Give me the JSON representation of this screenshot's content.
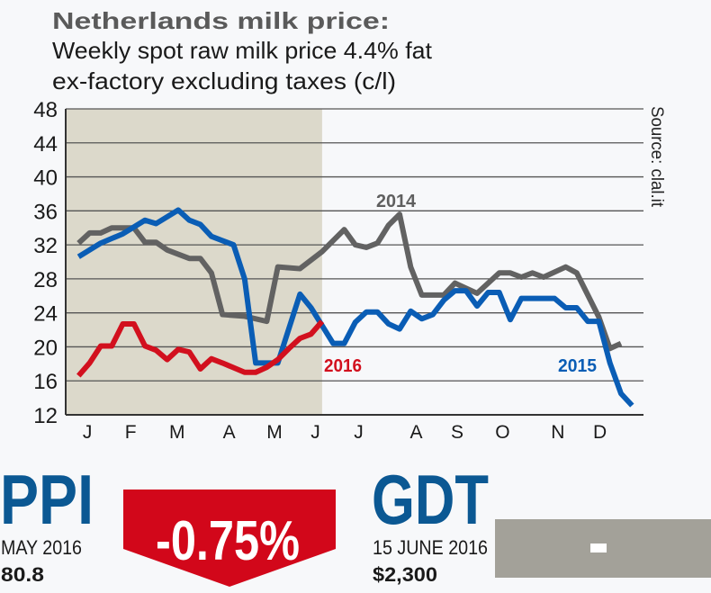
{
  "chart_data": {
    "type": "line",
    "title": "Netherlands milk price:",
    "subtitle": [
      "Weekly spot raw milk price 4.4% fat",
      "ex-factory excluding taxes (c/l)"
    ],
    "source": "Source: clal.it",
    "xlabel": "",
    "ylabel": "",
    "ylim": [
      12,
      48
    ],
    "yticks": [
      48,
      44,
      40,
      36,
      32,
      28,
      24,
      20,
      16,
      12
    ],
    "x_unit": "week",
    "xlim": [
      0,
      52
    ],
    "month_labels": [
      "J",
      "F",
      "M",
      "A",
      "M",
      "J",
      "J",
      "A",
      "S",
      "O",
      "N",
      "D"
    ],
    "month_label_weeks": [
      1.8,
      5.7,
      9.9,
      14.6,
      18.7,
      22.4,
      26.3,
      31.5,
      35.2,
      39.3,
      44.3,
      48.1
    ],
    "shaded_region_weeks": [
      0,
      23
    ],
    "grid": true,
    "series": [
      {
        "name": "2014",
        "color": "#626262",
        "points": [
          [
            1,
            32.2
          ],
          [
            2,
            33.4
          ],
          [
            3,
            33.4
          ],
          [
            4,
            34
          ],
          [
            6,
            34
          ],
          [
            7,
            32.3
          ],
          [
            8,
            32.3
          ],
          [
            9,
            31.4
          ],
          [
            11,
            30.4
          ],
          [
            12,
            30.4
          ],
          [
            13,
            28.7
          ],
          [
            14,
            23.8
          ],
          [
            16,
            23.6
          ],
          [
            18,
            23.0
          ],
          [
            19,
            29.4
          ],
          [
            21,
            29.2
          ],
          [
            23,
            31.2
          ],
          [
            25,
            33.8
          ],
          [
            26,
            32.0
          ],
          [
            27,
            31.7
          ],
          [
            28,
            32.2
          ],
          [
            29,
            34.3
          ],
          [
            30,
            35.6
          ],
          [
            31,
            29.4
          ],
          [
            32,
            26.1
          ],
          [
            34,
            26.1
          ],
          [
            35,
            27.5
          ],
          [
            37,
            26.3
          ],
          [
            39,
            28.7
          ],
          [
            40,
            28.7
          ],
          [
            41,
            28.2
          ],
          [
            42,
            28.7
          ],
          [
            43,
            28.2
          ],
          [
            45,
            29.4
          ],
          [
            46,
            28.7
          ],
          [
            48,
            23.5
          ],
          [
            49,
            19.8
          ],
          [
            50,
            20.4
          ]
        ]
      },
      {
        "name": "2015",
        "color": "#0a5db5",
        "points": [
          [
            1,
            30.6
          ],
          [
            3,
            32.2
          ],
          [
            5,
            33.3
          ],
          [
            7,
            34.9
          ],
          [
            8,
            34.5
          ],
          [
            10,
            36.1
          ],
          [
            11,
            34.9
          ],
          [
            12,
            34.4
          ],
          [
            13,
            33.0
          ],
          [
            14,
            32.5
          ],
          [
            15,
            32.0
          ],
          [
            16,
            28.0
          ],
          [
            17,
            18.1
          ],
          [
            19,
            18.1
          ],
          [
            21,
            26.2
          ],
          [
            22,
            24.6
          ],
          [
            23,
            22.5
          ],
          [
            24,
            20.4
          ],
          [
            25,
            20.4
          ],
          [
            26,
            22.9
          ],
          [
            27,
            24.1
          ],
          [
            28,
            24.1
          ],
          [
            29,
            22.7
          ],
          [
            30,
            22.1
          ],
          [
            31,
            24.2
          ],
          [
            32,
            23.3
          ],
          [
            33,
            23.8
          ],
          [
            34,
            25.5
          ],
          [
            35,
            26.6
          ],
          [
            36,
            26.6
          ],
          [
            37,
            24.8
          ],
          [
            38,
            26.4
          ],
          [
            39,
            26.4
          ],
          [
            40,
            23.2
          ],
          [
            41,
            25.7
          ],
          [
            44,
            25.7
          ],
          [
            45,
            24.6
          ],
          [
            46,
            24.6
          ],
          [
            47,
            23.0
          ],
          [
            48,
            23.0
          ],
          [
            49,
            18.1
          ],
          [
            50,
            14.5
          ],
          [
            51,
            13.1
          ]
        ]
      },
      {
        "name": "2016",
        "color": "#d2101e",
        "points": [
          [
            1,
            16.6
          ],
          [
            2,
            18.1
          ],
          [
            3,
            20.1
          ],
          [
            4,
            20.1
          ],
          [
            5,
            22.7
          ],
          [
            6,
            22.7
          ],
          [
            7,
            20.1
          ],
          [
            8,
            19.6
          ],
          [
            9,
            18.5
          ],
          [
            10,
            19.7
          ],
          [
            11,
            19.4
          ],
          [
            12,
            17.4
          ],
          [
            13,
            18.6
          ],
          [
            14,
            18.1
          ],
          [
            16,
            17.0
          ],
          [
            17,
            17.0
          ],
          [
            18,
            17.6
          ],
          [
            19,
            18.5
          ],
          [
            20,
            19.8
          ],
          [
            21,
            21.0
          ],
          [
            22,
            21.5
          ],
          [
            23,
            23.0
          ]
        ]
      }
    ],
    "series_labels": [
      "2014",
      "2015",
      "2016"
    ],
    "colors": {
      "band": "#dcd9cb",
      "grid": "#555555",
      "axis": "#333333"
    }
  },
  "indicators": {
    "ppi": {
      "label": "PPI",
      "period": "MAY 2016",
      "value": "80.8",
      "change": "-0.75%",
      "color": "#0b5893",
      "change_color": "#d2071a"
    },
    "gdt": {
      "label": "GDT",
      "period": "15 JUNE 2016",
      "value": "$2,300",
      "change": "-",
      "color": "#0b5893",
      "change_color": "#a3a199"
    }
  }
}
